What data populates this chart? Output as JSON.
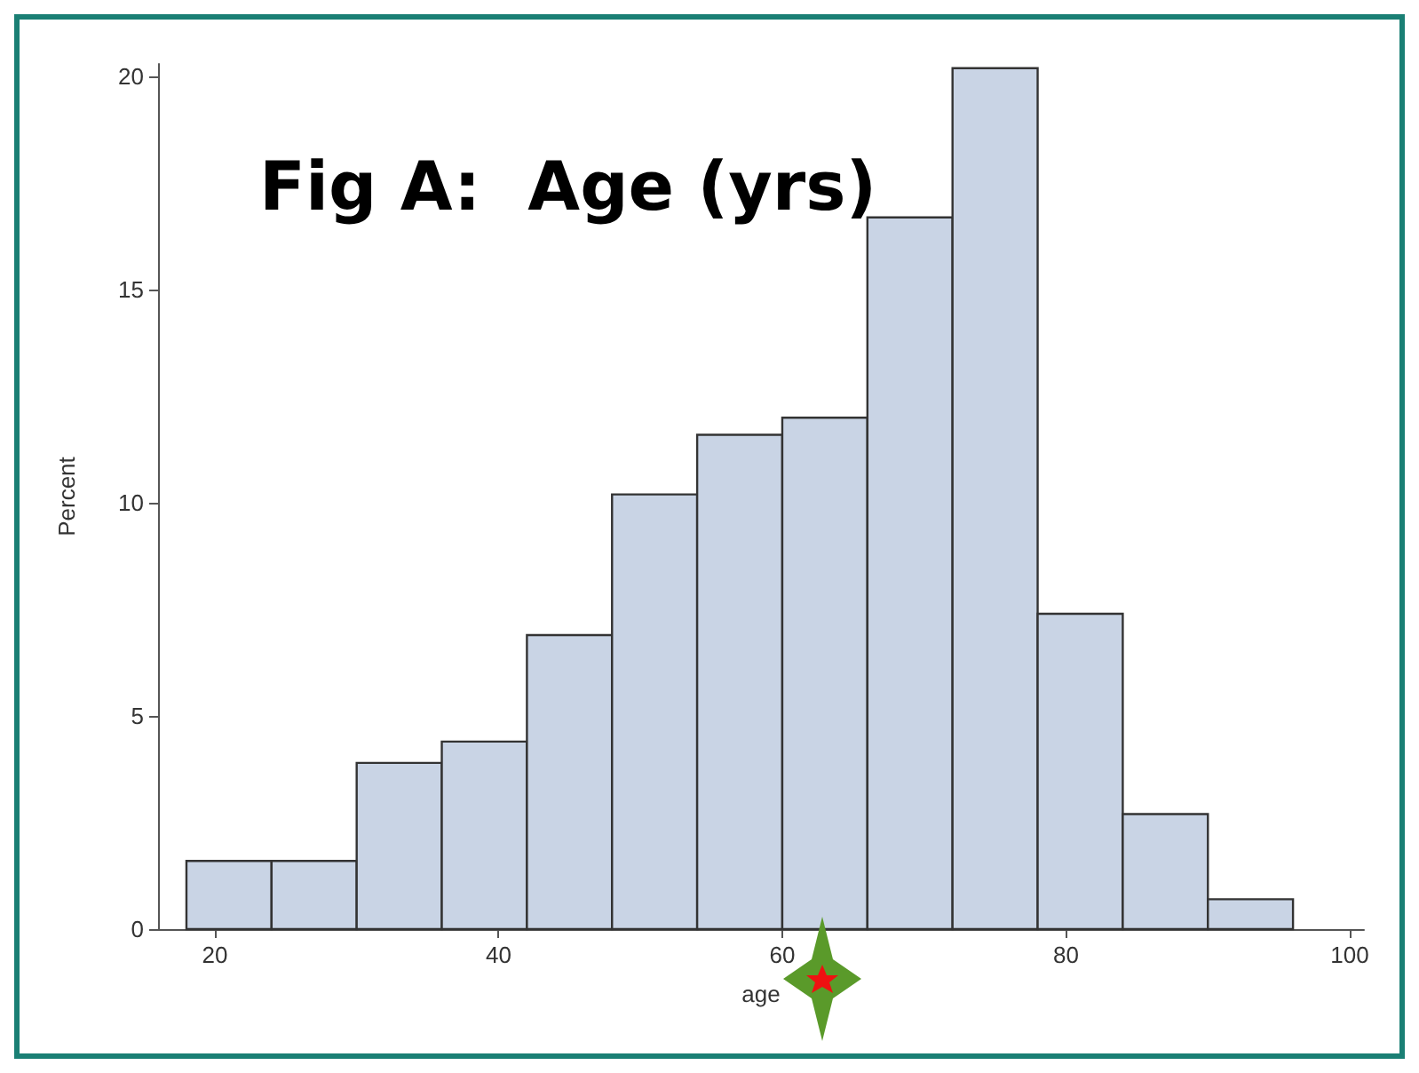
{
  "chart_data": {
    "type": "histogram",
    "title": "Fig A:  Age (yrs)",
    "xlabel": "age",
    "ylabel": "Percent",
    "bins": [
      18,
      24,
      30,
      36,
      42,
      48,
      54,
      60,
      66,
      72,
      78,
      84,
      90,
      96
    ],
    "values": [
      1.6,
      1.6,
      3.9,
      4.4,
      6.9,
      10.2,
      11.6,
      12.0,
      16.7,
      20.2,
      7.4,
      2.7,
      0.7
    ],
    "color": "#c9d4e5",
    "xlim": [
      16,
      101
    ],
    "xticks": [
      20,
      40,
      60,
      80,
      100
    ],
    "ylim": [
      0,
      20.3
    ],
    "yticks": [
      0,
      5,
      10,
      15,
      20
    ],
    "grid": false
  }
}
